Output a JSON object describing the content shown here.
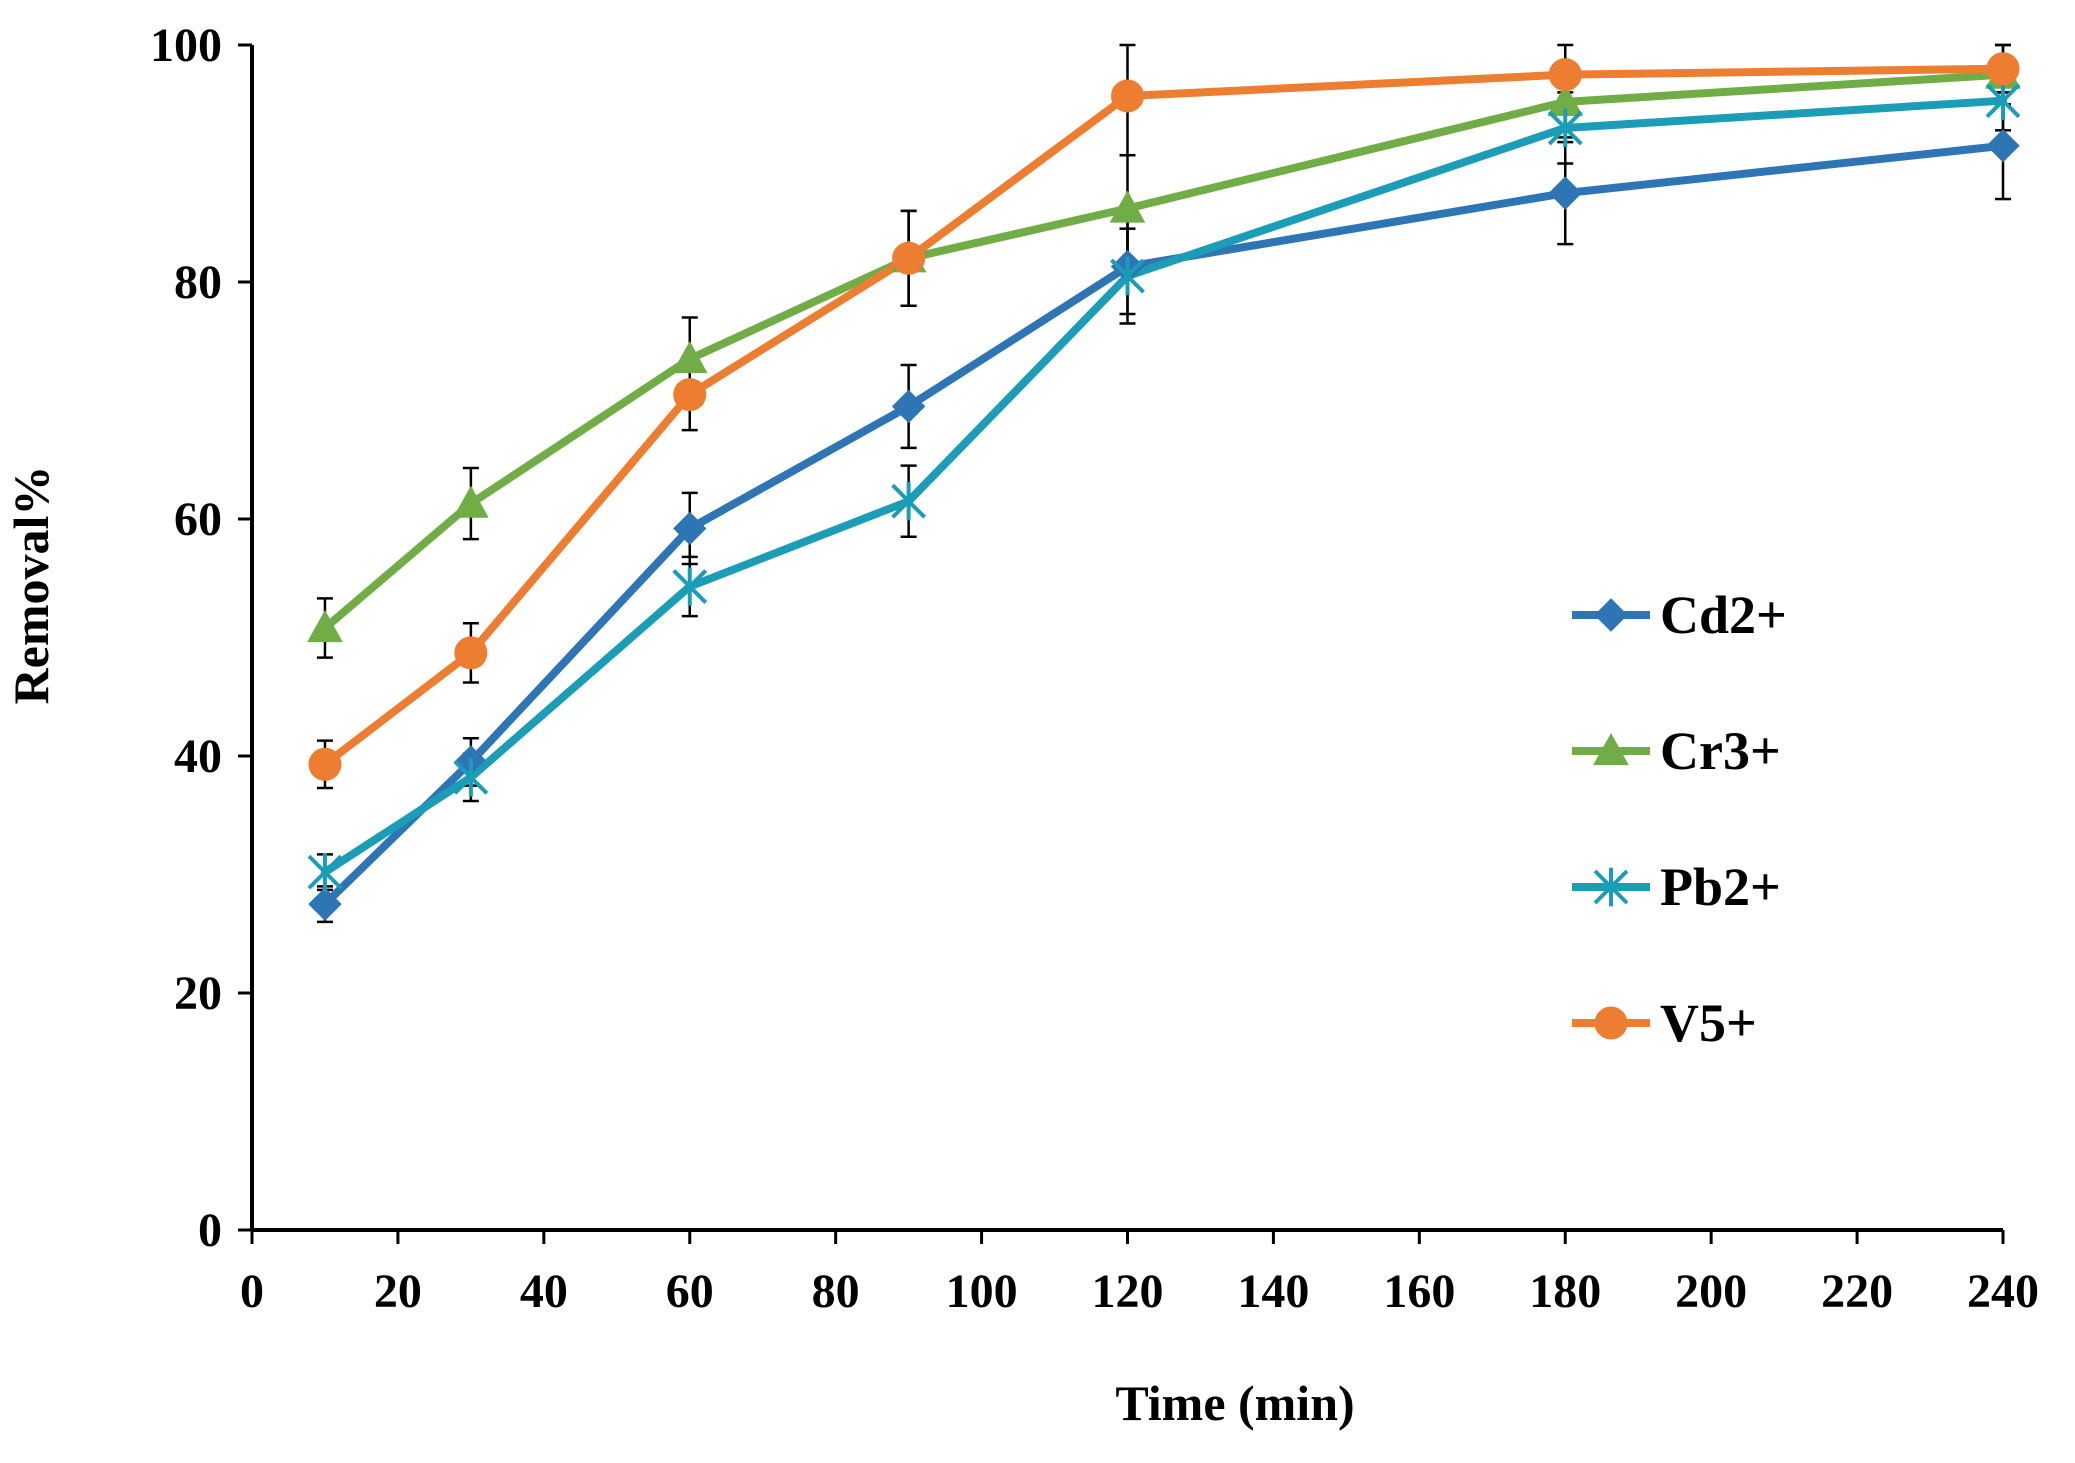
{
  "chart_data": {
    "type": "line",
    "title": "",
    "xlabel": "Time (min)",
    "ylabel": "Removal%",
    "xlim": [
      0,
      240
    ],
    "ylim": [
      0,
      100
    ],
    "x_ticks": [
      0,
      20,
      40,
      60,
      80,
      100,
      120,
      140,
      160,
      180,
      200,
      220,
      240
    ],
    "y_ticks": [
      0,
      20,
      40,
      60,
      80,
      100
    ],
    "x": [
      10,
      30,
      60,
      90,
      120,
      180,
      240
    ],
    "legend_position": "right",
    "grid": false,
    "series": [
      {
        "name": "Cd2+",
        "color": "#2E75B6",
        "marker": "diamond",
        "values": [
          27.5,
          39.5,
          59.2,
          69.5,
          81.3,
          87.5,
          91.5
        ],
        "errors": [
          1.5,
          2.0,
          3.0,
          3.5,
          4.0,
          4.3,
          4.5
        ]
      },
      {
        "name": "Cr3+",
        "color": "#70AD47",
        "marker": "triangle",
        "values": [
          50.8,
          61.3,
          73.5,
          82.0,
          86.2,
          95.2,
          97.5
        ],
        "errors": [
          2.5,
          3.0,
          3.5,
          4.0,
          4.5,
          3.0,
          2.5
        ]
      },
      {
        "name": "Pb2+",
        "color": "#1B9DB8",
        "marker": "star",
        "values": [
          30.2,
          38.2,
          54.3,
          61.5,
          80.5,
          93.0,
          95.3
        ],
        "errors": [
          1.5,
          2.0,
          2.5,
          3.0,
          4.0,
          3.0,
          2.5
        ]
      },
      {
        "name": "V5+",
        "color": "#ED7D31",
        "marker": "circle",
        "values": [
          39.3,
          48.7,
          70.5,
          82.0,
          95.7,
          97.5,
          98.0
        ],
        "errors": [
          2.0,
          2.5,
          3.0,
          4.0,
          5.0,
          2.5,
          2.0
        ]
      }
    ]
  }
}
